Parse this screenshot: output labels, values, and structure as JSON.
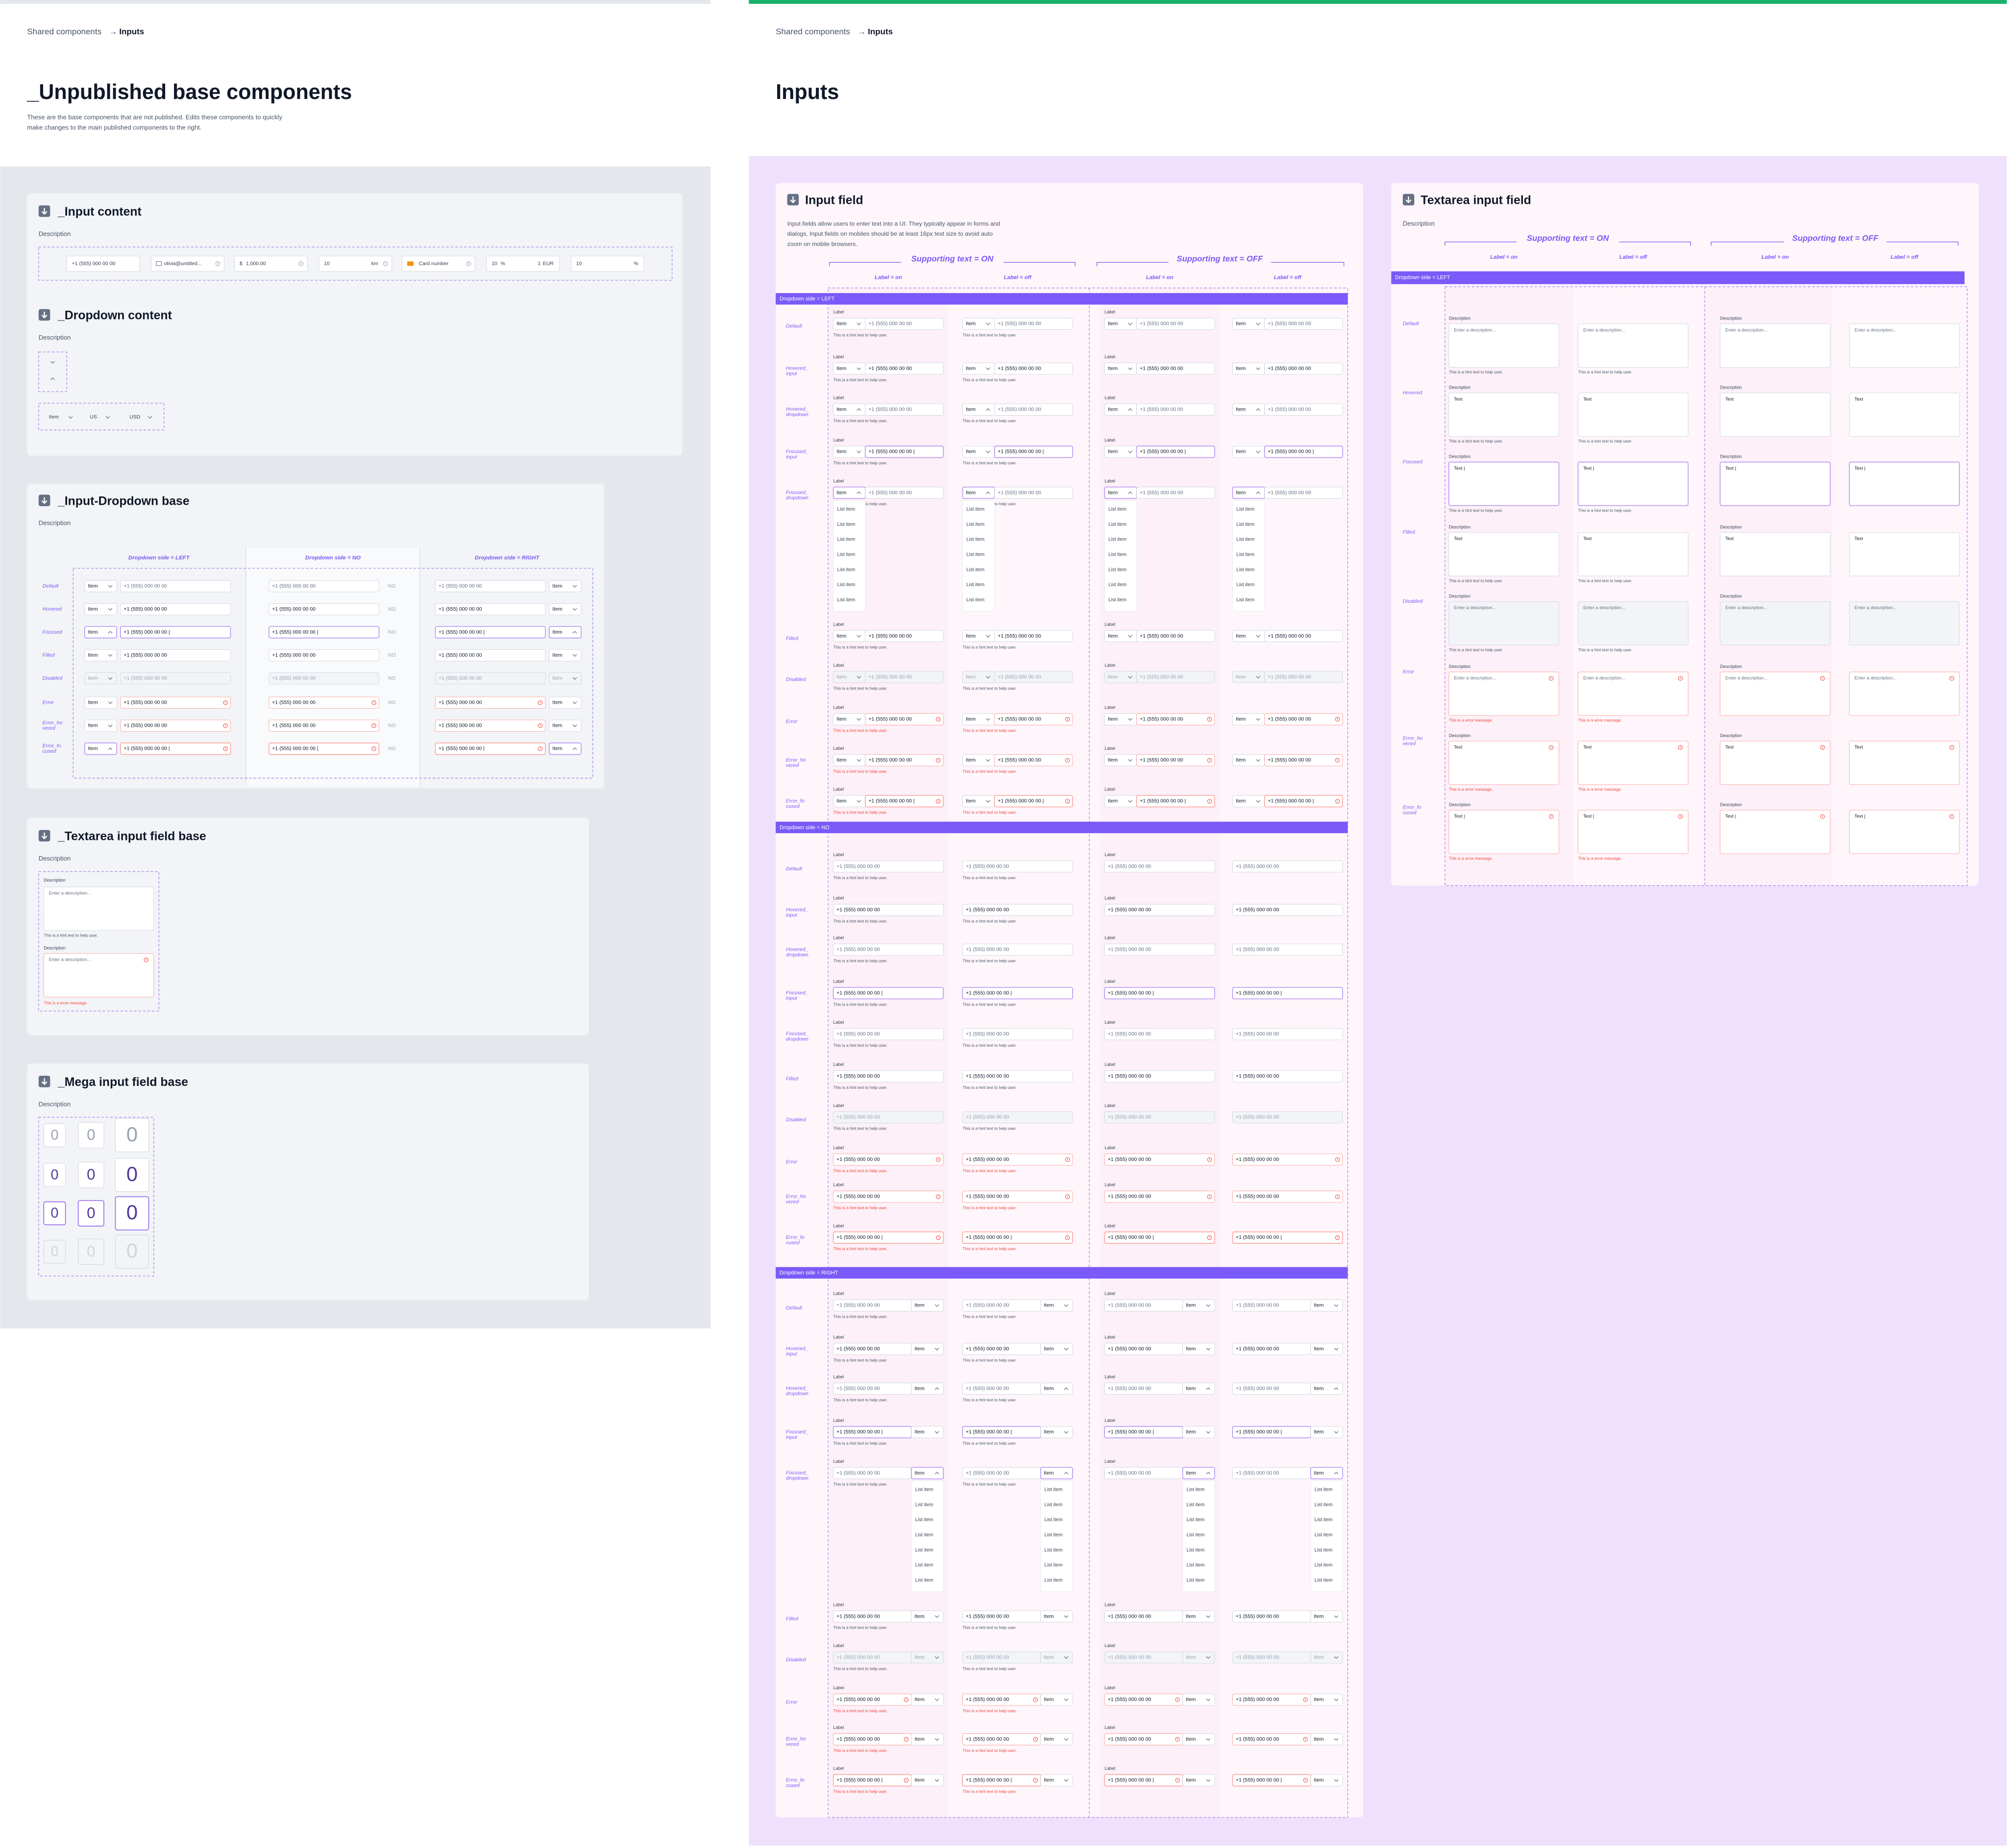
{
  "left": {
    "breadcrumb": {
      "parent": "Shared components",
      "arrow": "→",
      "current": "Inputs"
    },
    "title": "_Unpublished base components",
    "description": [
      "These are the base components that are not published. Edits these components to quickly",
      "make changes to the main published components to the right."
    ],
    "input_content": {
      "title": "_Input content",
      "description": "Description",
      "chips": [
        [
          "+1 (555) 000 00 00"
        ],
        [
          "olivia@untitled..."
        ],
        [
          "$",
          "1,000.00"
        ],
        [
          "10",
          "km"
        ],
        [
          "Card number"
        ],
        [
          "10",
          "%",
          "1",
          "EUR"
        ],
        [
          "10",
          "%"
        ]
      ]
    },
    "dropdown_content": {
      "title": "_Dropdown content",
      "description": "Description",
      "items": [
        "Item",
        "US",
        "USD"
      ]
    },
    "input_dropdown_base": {
      "title": "_Input-Dropdown base",
      "description": "Description",
      "columns": [
        "Dropdown side = LEFT",
        "Dropdown side = NO",
        "Dropdown side = RIGHT"
      ],
      "no_label": "NO"
    },
    "textarea_base": {
      "title": "_Textarea input field base",
      "description": "Description"
    },
    "mega_base": {
      "title": "_Mega input field base",
      "description": "Description",
      "digit": "0"
    }
  },
  "right": {
    "breadcrumb": {
      "parent": "Shared components",
      "arrow": "→",
      "current": "Inputs"
    },
    "title": "Inputs",
    "input_field": {
      "title": "Input field",
      "description": [
        "Input fields allow users to enter text into a UI. They typically appear in forms and",
        "dialogs. Input fields on mobiles should be at least 16px text size to avoid auto",
        "zoom on mobile browsers."
      ],
      "supporting": [
        "Supporting text = ON",
        "Supporting text = OFF"
      ],
      "label_columns": [
        "Label = on",
        "Label = off"
      ],
      "sections": [
        "Dropdown side = LEFT",
        "Dropdown side = NO",
        "Dropdown side = RIGHT"
      ],
      "states": [
        [
          "Default"
        ],
        [
          "Hovered_",
          "input"
        ],
        [
          "Hovered_",
          "dropdown"
        ],
        [
          "Focused_",
          "input"
        ],
        [
          "Focused_",
          "dropdown"
        ],
        [
          "Filled"
        ],
        [
          "Disabled"
        ],
        [
          "Error"
        ],
        [
          "Error_ho",
          "vered"
        ],
        [
          "Error_fo",
          "cused"
        ]
      ]
    },
    "textarea_field": {
      "title": "Textarea input field",
      "description": "Description",
      "supporting": [
        "Supporting text = ON",
        "Supporting text = OFF"
      ],
      "label_columns": [
        "Label = on",
        "Label = off"
      ],
      "section": "Dropdown side = LEFT"
    }
  },
  "base_states": [
    [
      "Default"
    ],
    [
      "Hovered"
    ],
    [
      "Focused"
    ],
    [
      "Filled"
    ],
    [
      "Disabled"
    ],
    [
      "Error"
    ],
    [
      "Error_ho",
      "vered"
    ],
    [
      "Error_fo",
      "cused"
    ]
  ],
  "common": {
    "label": "Label",
    "hint": "This is a hint text to help user.",
    "error_message": "This is a error message.",
    "phone": "+1 (555) 000 00 00",
    "phone_typed": "+1 (555) 000 00 00 |",
    "item": "Item",
    "list_item": "List item",
    "description_label": "Description",
    "placeholder": "Enter a description...",
    "text": "Text",
    "text_typed": "Text |"
  }
}
